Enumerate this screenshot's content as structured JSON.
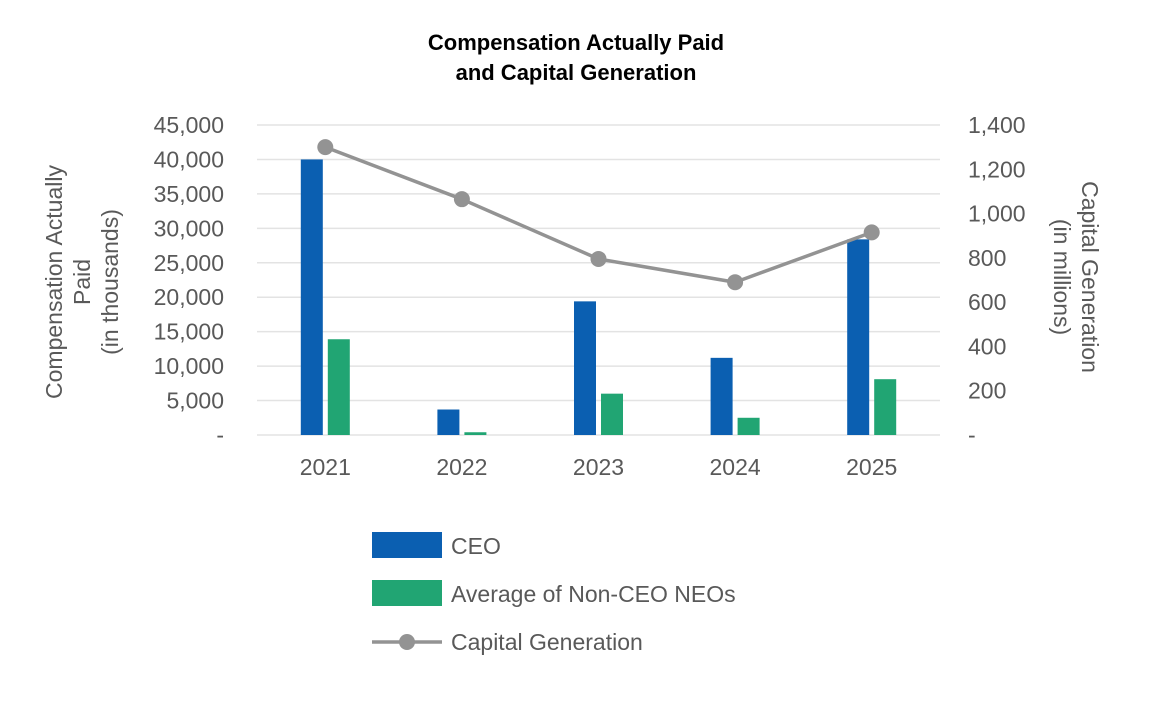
{
  "chart_data": {
    "type": "bar",
    "title_lines": [
      "Compensation Actually Paid",
      "and Capital Generation"
    ],
    "categories": [
      "2021",
      "2022",
      "2023",
      "2024",
      "2025"
    ],
    "series": [
      {
        "name": "CEO",
        "type": "bar",
        "axis": "left",
        "color": "#0B5FB1",
        "values": [
          40000,
          3700,
          19400,
          11200,
          28400
        ]
      },
      {
        "name": "Average of Non-CEO NEOs",
        "type": "bar",
        "axis": "left",
        "color": "#21A573",
        "values": [
          13900,
          400,
          6000,
          2500,
          8100
        ]
      },
      {
        "name": "Capital Generation",
        "type": "line",
        "axis": "right",
        "color": "#939393",
        "values": [
          1300,
          1065,
          795,
          690,
          915
        ]
      }
    ],
    "y_left": {
      "label_lines": [
        "Compensation Actually",
        "Paid",
        "(in thousands)"
      ],
      "ylim": [
        0,
        45000
      ],
      "ticks": [
        {
          "value": 0,
          "label": "-"
        },
        {
          "value": 5000,
          "label": "5,000"
        },
        {
          "value": 10000,
          "label": "10,000"
        },
        {
          "value": 15000,
          "label": "15,000"
        },
        {
          "value": 20000,
          "label": "20,000"
        },
        {
          "value": 25000,
          "label": "25,000"
        },
        {
          "value": 30000,
          "label": "30,000"
        },
        {
          "value": 35000,
          "label": "35,000"
        },
        {
          "value": 40000,
          "label": "40,000"
        },
        {
          "value": 45000,
          "label": "45,000"
        }
      ]
    },
    "y_right": {
      "label_lines": [
        "Capital Generation",
        "(in millions)"
      ],
      "ylim": [
        0,
        1400
      ],
      "ticks": [
        {
          "value": 0,
          "label": "-"
        },
        {
          "value": 200,
          "label": "200"
        },
        {
          "value": 400,
          "label": "400"
        },
        {
          "value": 600,
          "label": "600"
        },
        {
          "value": 800,
          "label": "800"
        },
        {
          "value": 1000,
          "label": "1,000"
        },
        {
          "value": 1200,
          "label": "1,200"
        },
        {
          "value": 1400,
          "label": "1,400"
        }
      ]
    },
    "grid": true,
    "legend_position": "bottom"
  }
}
